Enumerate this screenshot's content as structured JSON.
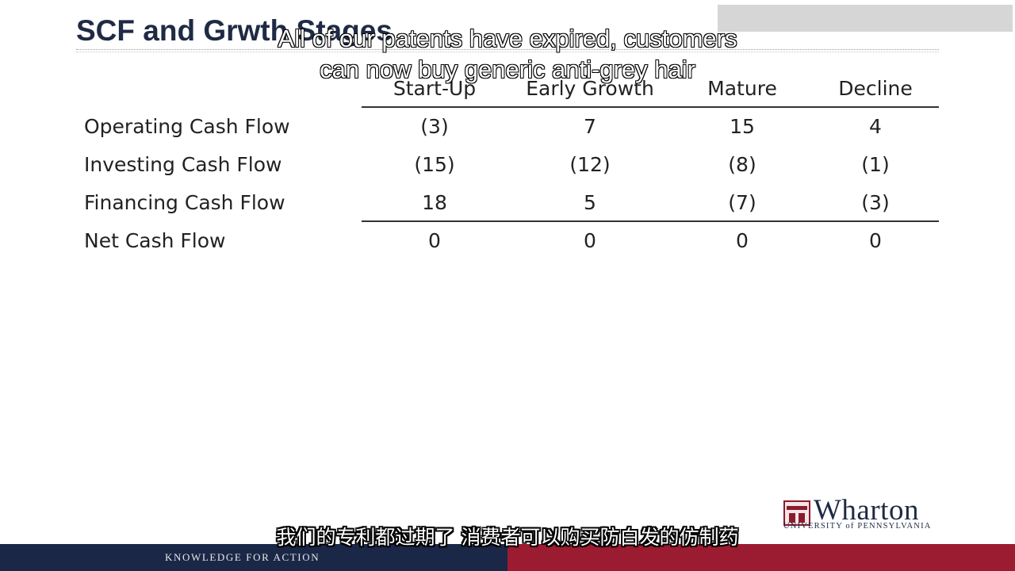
{
  "slide": {
    "title": "SCF and Gr",
    "title_occluded": "wth Stages"
  },
  "captions": {
    "en_line1": "All of our patents have expired, customers",
    "en_line2": "can now buy generic anti-grey hair",
    "zh": "我们的专利都过期了 消费者可以购买防白发的仿制药"
  },
  "table": {
    "columns": [
      "Start-Up",
      "Early Growth",
      "Mature",
      "Decline"
    ],
    "rows": [
      {
        "label": "Operating Cash Flow",
        "values": [
          "(3)",
          "7",
          "15",
          "4"
        ]
      },
      {
        "label": "Investing Cash Flow",
        "values": [
          "(15)",
          "(12)",
          "(8)",
          "(1)"
        ]
      },
      {
        "label": "Financing Cash Flow",
        "values": [
          "18",
          "5",
          "(7)",
          "(3)"
        ]
      },
      {
        "label": "Net Cash Flow",
        "values": [
          "0",
          "0",
          "0",
          "0"
        ]
      }
    ]
  },
  "branding": {
    "logo_name": "Wharton",
    "logo_sub": "UNIVERSITY of PENNSYLVANIA",
    "footer": "KNOWLEDGE FOR ACTION",
    "navy": "#1a2747",
    "red": "#9b1b30"
  }
}
